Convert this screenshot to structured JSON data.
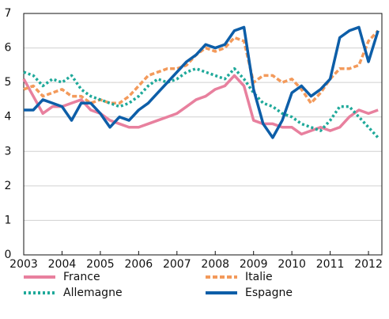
{
  "chart_data": {
    "type": "line",
    "x": [
      2003,
      2003.25,
      2003.5,
      2003.75,
      2004,
      2004.25,
      2004.5,
      2004.75,
      2005,
      2005.25,
      2005.5,
      2005.75,
      2006,
      2006.25,
      2006.5,
      2006.75,
      2007,
      2007.25,
      2007.5,
      2007.75,
      2008,
      2008.25,
      2008.5,
      2008.75,
      2009,
      2009.25,
      2009.5,
      2009.75,
      2010,
      2010.25,
      2010.5,
      2010.75,
      2011,
      2011.25,
      2011.5,
      2011.75,
      2012,
      2012.25
    ],
    "series": [
      {
        "name": "France",
        "color": "#e8809e",
        "dash": "none",
        "values": [
          5.1,
          4.6,
          4.1,
          4.3,
          4.3,
          4.4,
          4.5,
          4.2,
          4.1,
          3.9,
          3.8,
          3.7,
          3.7,
          3.8,
          3.9,
          4.0,
          4.1,
          4.3,
          4.5,
          4.6,
          4.8,
          4.9,
          5.2,
          4.9,
          3.9,
          3.8,
          3.8,
          3.7,
          3.7,
          3.5,
          3.6,
          3.7,
          3.6,
          3.7,
          4.0,
          4.2,
          4.1,
          4.2
        ]
      },
      {
        "name": "Italie",
        "color": "#f39a5b",
        "dash": "6 3",
        "values": [
          4.8,
          4.9,
          4.6,
          4.7,
          4.8,
          4.6,
          4.6,
          4.4,
          4.5,
          4.4,
          4.4,
          4.6,
          4.9,
          5.2,
          5.3,
          5.4,
          5.4,
          5.5,
          5.8,
          6.0,
          5.9,
          6.0,
          6.3,
          6.2,
          5.0,
          5.2,
          5.2,
          5.0,
          5.1,
          4.8,
          4.4,
          4.7,
          5.1,
          5.4,
          5.4,
          5.5,
          6.2,
          6.5
        ]
      },
      {
        "name": "Allemagne",
        "color": "#1fa99a",
        "dash": "3 3",
        "values": [
          5.3,
          5.2,
          4.9,
          5.1,
          5.0,
          5.2,
          4.8,
          4.6,
          4.5,
          4.4,
          4.3,
          4.4,
          4.6,
          4.9,
          5.1,
          5.0,
          5.1,
          5.3,
          5.4,
          5.3,
          5.2,
          5.1,
          5.4,
          5.1,
          4.7,
          4.4,
          4.3,
          4.1,
          4.0,
          3.8,
          3.7,
          3.6,
          3.9,
          4.3,
          4.3,
          4.0,
          3.7,
          3.4
        ]
      },
      {
        "name": "Espagne",
        "color": "#0d5ea8",
        "dash": "none",
        "values": [
          4.2,
          4.2,
          4.5,
          4.4,
          4.3,
          3.9,
          4.4,
          4.4,
          4.1,
          3.7,
          4.0,
          3.9,
          4.2,
          4.4,
          4.7,
          5.0,
          5.3,
          5.6,
          5.8,
          6.1,
          6.0,
          6.1,
          6.5,
          6.6,
          4.8,
          3.8,
          3.4,
          3.9,
          4.7,
          4.9,
          4.6,
          4.8,
          5.1,
          6.3,
          6.5,
          6.6,
          5.6,
          6.5
        ]
      }
    ],
    "xlim": [
      2003,
      2012.35
    ],
    "xticks": [
      2003,
      2004,
      2005,
      2006,
      2007,
      2008,
      2009,
      2010,
      2011,
      2012
    ],
    "ylim": [
      0,
      7
    ],
    "yticks": [
      0,
      1,
      2,
      3,
      4,
      5,
      6,
      7
    ],
    "grid": true,
    "legend": "bottom"
  }
}
